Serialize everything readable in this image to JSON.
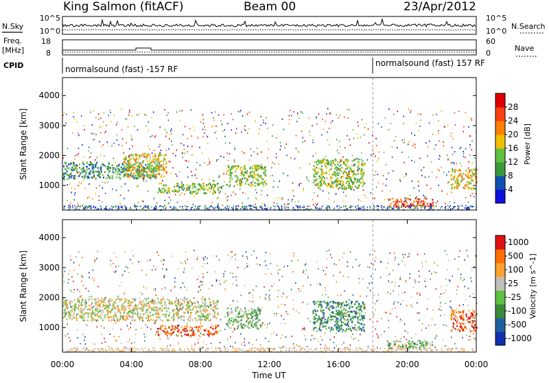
{
  "header": {
    "title": "King Salmon (fitACF)",
    "beam": "Beam 00",
    "date": "23/Apr/2012"
  },
  "strips": {
    "nsky_label": "N.Sky",
    "nsearch_label": "N.Search",
    "noise_ticks": [
      "10^5",
      "10^0"
    ],
    "freq_label_line1": "Freq.",
    "freq_label_line2": "[MHz]",
    "freq_ticks": [
      "18",
      "8"
    ],
    "nave_label": "Nave",
    "nave_ticks": [
      "60",
      "0"
    ],
    "cpid_label": "CPID",
    "cpid_entries": [
      {
        "text": "normalsound (fast) -157 RF",
        "start_hour": 0
      },
      {
        "text": "normalsound (fast) 157 RF",
        "start_hour": 18
      }
    ]
  },
  "chart_data": [
    {
      "type": "heatmap",
      "name": "power",
      "ylabel": "Slant Range [km]",
      "ylim": [
        180,
        4600
      ],
      "yticks": [
        "1000",
        "2000",
        "3000",
        "4000"
      ],
      "xlim": [
        0,
        24
      ],
      "colorbar_label": "Power [dB]",
      "colorbar_ticks": [
        "28",
        "24",
        "20",
        "16",
        "12",
        "8",
        "4"
      ],
      "colors": [
        "#1010e0",
        "#1050b0",
        "#3a9a3a",
        "#60c040",
        "#f0c000",
        "#ff8000",
        "#ff4010",
        "#e00000"
      ],
      "regions": [
        {
          "hours": [
            0.0,
            5.5
          ],
          "range_km": [
            1250,
            1800
          ],
          "level": 2
        },
        {
          "hours": [
            3.5,
            6.0
          ],
          "range_km": [
            1300,
            2100
          ],
          "level": 4
        },
        {
          "hours": [
            5.5,
            9.2
          ],
          "range_km": [
            750,
            1100
          ],
          "level": 3
        },
        {
          "hours": [
            9.5,
            11.8
          ],
          "range_km": [
            1000,
            1700
          ],
          "level": 3
        },
        {
          "hours": [
            14.5,
            17.5
          ],
          "range_km": [
            900,
            1900
          ],
          "level": 3
        },
        {
          "hours": [
            18.8,
            21.5
          ],
          "range_km": [
            300,
            600
          ],
          "level": 6
        },
        {
          "hours": [
            22.5,
            24.0
          ],
          "range_km": [
            900,
            1600
          ],
          "level": 4
        }
      ]
    },
    {
      "type": "heatmap",
      "name": "velocity",
      "ylabel": "Slant Range [km]",
      "ylim": [
        180,
        4600
      ],
      "yticks": [
        "1000",
        "2000",
        "3000",
        "4000"
      ],
      "xlim": [
        0,
        24
      ],
      "xticks": [
        "00:00",
        "04:00",
        "08:00",
        "12:00",
        "16:00",
        "20:00",
        "00:00"
      ],
      "xlabel": "Time UT",
      "colorbar_label": "Velocity [m s^-1]",
      "colorbar_ticks": [
        "1000",
        "500",
        "100",
        "25",
        "-25",
        "-100",
        "-500",
        "-1000"
      ],
      "colors": [
        "#1030b0",
        "#2060a0",
        "#3a8a3a",
        "#60c040",
        "#c0c0b8",
        "#ffa030",
        "#ff7000",
        "#e01010"
      ],
      "regions": [
        {
          "hours": [
            0.0,
            9.0
          ],
          "range_km": [
            1250,
            2000
          ],
          "level": 4
        },
        {
          "hours": [
            5.5,
            9.0
          ],
          "range_km": [
            750,
            1100
          ],
          "level": 6
        },
        {
          "hours": [
            9.5,
            11.5
          ],
          "range_km": [
            1000,
            1700
          ],
          "level": 3
        },
        {
          "hours": [
            14.5,
            17.5
          ],
          "range_km": [
            900,
            1900
          ],
          "level": 2
        },
        {
          "hours": [
            18.8,
            21.5
          ],
          "range_km": [
            300,
            600
          ],
          "level": 3
        },
        {
          "hours": [
            22.5,
            24.0
          ],
          "range_km": [
            900,
            1600
          ],
          "level": 6
        }
      ]
    }
  ]
}
